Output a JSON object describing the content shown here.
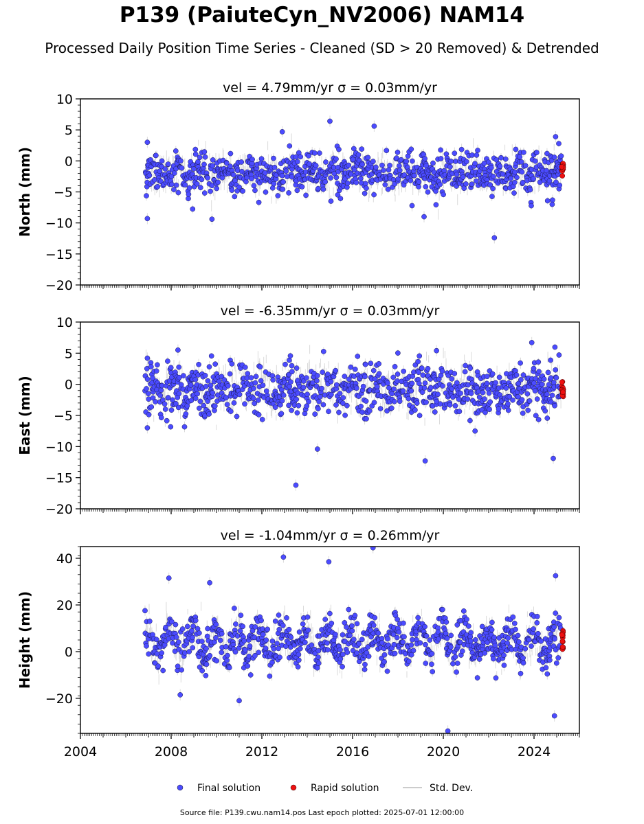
{
  "figure": {
    "title": "P139 (PaiuteCyn_NV2006) NAM14",
    "subtitle": "Processed Daily Position Time Series - Cleaned (SD > 20 Removed) & Detrended",
    "footer": "Source file: P139.cwu.nam14.pos  Last epoch plotted: 2025-07-01 12:00:00",
    "colors": {
      "final": "#4b4bff",
      "rapid": "#ee1111",
      "stddev": "#bbbbbb"
    }
  },
  "legend": [
    {
      "label": "Final solution",
      "marker": "circle",
      "color": "#4b4bff"
    },
    {
      "label": "Rapid solution",
      "marker": "circle",
      "color": "#ee1111"
    },
    {
      "label": "Std. Dev.",
      "marker": "line",
      "color": "#bbbbbb"
    }
  ],
  "chart_data": [
    {
      "type": "scatter",
      "title": "vel = 4.79mm/yr   σ = 0.03mm/yr",
      "ylabel": "North (mm)",
      "xlim": [
        2004,
        2026
      ],
      "ylim": [
        -20,
        10
      ],
      "yticks": [
        10,
        5,
        0,
        -5,
        -10,
        -15,
        -20
      ],
      "xticks": [
        2004,
        2008,
        2012,
        2016,
        2020,
        2024
      ],
      "show_xtick_labels": false,
      "final": {
        "start": 2006.85,
        "end": 2025.2,
        "center": -2.0,
        "spread": 1.6,
        "amplitude": 0.6,
        "trend": 0.0
      },
      "rapid": {
        "start": 2025.22,
        "end": 2025.5,
        "center": -1.2,
        "spread": 0.6
      },
      "outliers": [
        [
          2006.95,
          3.0
        ],
        [
          2006.95,
          -9.3
        ],
        [
          2009.8,
          -9.4
        ],
        [
          2012.9,
          4.7
        ],
        [
          2015.0,
          6.4
        ],
        [
          2016.95,
          5.6
        ],
        [
          2019.15,
          -9.0
        ],
        [
          2022.25,
          -12.4
        ],
        [
          2024.95,
          3.9
        ],
        [
          2024.8,
          -7.0
        ]
      ]
    },
    {
      "type": "scatter",
      "title": "vel = -6.35mm/yr   σ = 0.03mm/yr",
      "ylabel": "East (mm)",
      "xlim": [
        2004,
        2026
      ],
      "ylim": [
        -20,
        10
      ],
      "yticks": [
        10,
        5,
        0,
        -5,
        -10,
        -15,
        -20
      ],
      "xticks": [
        2004,
        2008,
        2012,
        2016,
        2020,
        2024
      ],
      "show_xtick_labels": false,
      "final": {
        "start": 2006.85,
        "end": 2025.2,
        "center": -0.8,
        "spread": 2.0,
        "amplitude": 0.8,
        "trend": 0.0
      },
      "rapid": {
        "start": 2025.22,
        "end": 2025.5,
        "center": -1.2,
        "spread": 0.8
      },
      "outliers": [
        [
          2006.95,
          4.2
        ],
        [
          2006.95,
          -7.0
        ],
        [
          2008.3,
          5.5
        ],
        [
          2013.5,
          -16.2
        ],
        [
          2014.45,
          -10.4
        ],
        [
          2019.7,
          5.4
        ],
        [
          2019.2,
          -12.3
        ],
        [
          2023.9,
          6.7
        ],
        [
          2024.85,
          -11.9
        ],
        [
          2021.4,
          -7.5
        ]
      ]
    },
    {
      "type": "scatter",
      "title": "vel = -1.04mm/yr   σ = 0.26mm/yr",
      "ylabel": "Height (mm)",
      "xlim": [
        2004,
        2026
      ],
      "ylim": [
        -35,
        45
      ],
      "yticks": [
        40,
        20,
        0,
        -20
      ],
      "xticks": [
        2004,
        2008,
        2012,
        2016,
        2020,
        2024
      ],
      "show_xtick_labels": true,
      "final": {
        "start": 2006.85,
        "end": 2025.2,
        "center": 4.0,
        "spread": 4.5,
        "amplitude": 5.0,
        "trend": 0.0
      },
      "rapid": {
        "start": 2025.22,
        "end": 2025.5,
        "center": 4.0,
        "spread": 3.0
      },
      "outliers": [
        [
          2007.9,
          31.5
        ],
        [
          2008.4,
          -18.5
        ],
        [
          2012.95,
          40.5
        ],
        [
          2014.95,
          38.5
        ],
        [
          2016.9,
          44.5
        ],
        [
          2011.0,
          -21.0
        ],
        [
          2020.2,
          -34.0
        ],
        [
          2024.9,
          -27.5
        ],
        [
          2024.95,
          32.5
        ],
        [
          2009.7,
          29.5
        ]
      ]
    }
  ]
}
